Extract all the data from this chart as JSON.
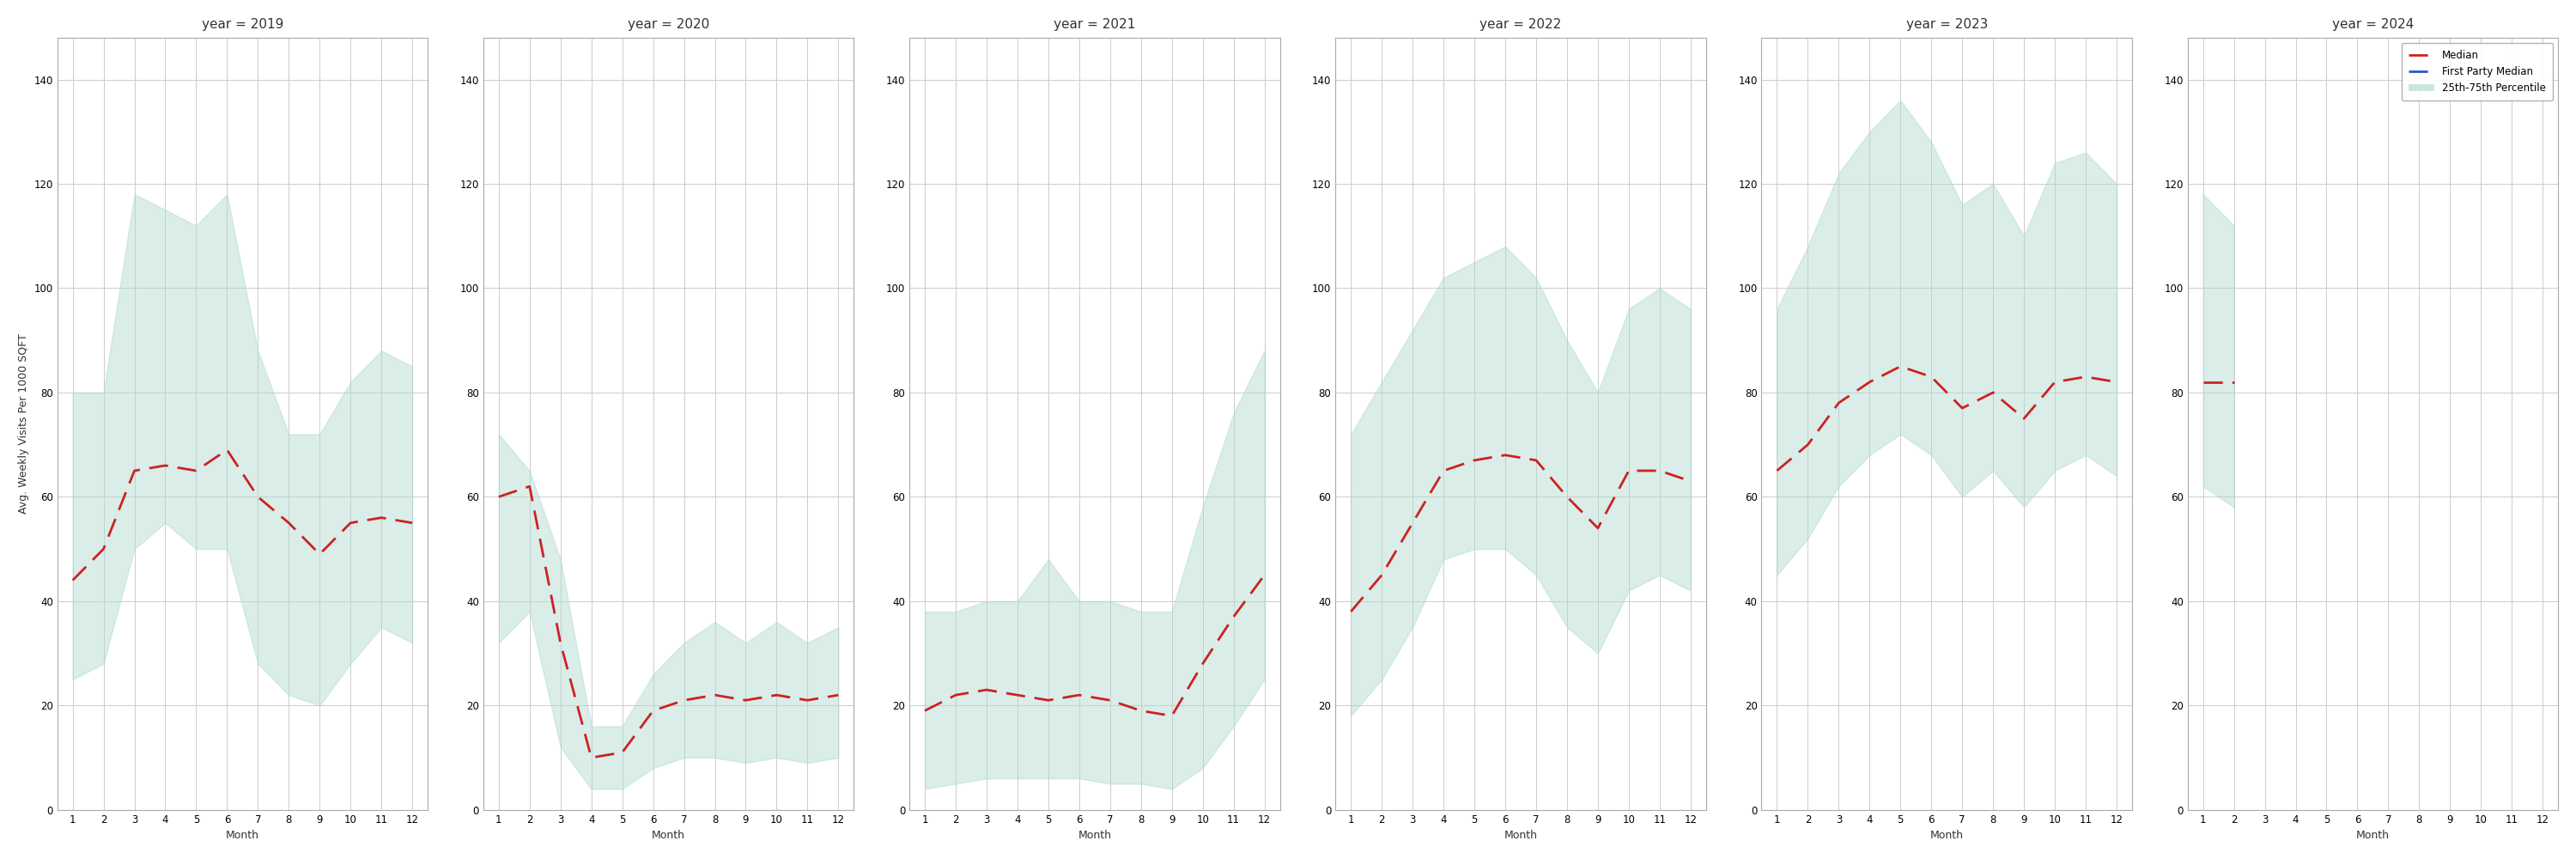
{
  "years": [
    2019,
    2020,
    2021,
    2022,
    2023,
    2024
  ],
  "months": [
    1,
    2,
    3,
    4,
    5,
    6,
    7,
    8,
    9,
    10,
    11,
    12
  ],
  "median": {
    "2019": [
      44,
      50,
      65,
      66,
      65,
      69,
      60,
      55,
      49,
      55,
      56,
      55
    ],
    "2020": [
      60,
      62,
      32,
      10,
      11,
      19,
      21,
      22,
      21,
      22,
      21,
      22
    ],
    "2021": [
      19,
      22,
      23,
      22,
      21,
      22,
      21,
      19,
      18,
      28,
      37,
      45
    ],
    "2022": [
      38,
      45,
      55,
      65,
      67,
      68,
      67,
      60,
      54,
      65,
      65,
      63
    ],
    "2023": [
      65,
      70,
      78,
      82,
      85,
      83,
      77,
      80,
      75,
      82,
      83,
      82
    ],
    "2024": [
      82,
      82,
      null,
      null,
      null,
      null,
      null,
      null,
      null,
      null,
      null,
      null
    ]
  },
  "p25": {
    "2019": [
      25,
      28,
      50,
      55,
      50,
      50,
      28,
      22,
      20,
      28,
      35,
      32
    ],
    "2020": [
      32,
      38,
      12,
      4,
      4,
      8,
      10,
      10,
      9,
      10,
      9,
      10
    ],
    "2021": [
      4,
      5,
      6,
      6,
      6,
      6,
      5,
      5,
      4,
      8,
      16,
      25
    ],
    "2022": [
      18,
      25,
      35,
      48,
      50,
      50,
      45,
      35,
      30,
      42,
      45,
      42
    ],
    "2023": [
      45,
      52,
      62,
      68,
      72,
      68,
      60,
      65,
      58,
      65,
      68,
      64
    ],
    "2024": [
      62,
      58,
      null,
      null,
      null,
      null,
      null,
      null,
      null,
      null,
      null,
      null
    ]
  },
  "p75": {
    "2019": [
      80,
      80,
      118,
      115,
      112,
      118,
      88,
      72,
      72,
      82,
      88,
      85
    ],
    "2020": [
      72,
      65,
      48,
      16,
      16,
      26,
      32,
      36,
      32,
      36,
      32,
      35
    ],
    "2021": [
      38,
      38,
      40,
      40,
      48,
      40,
      40,
      38,
      38,
      58,
      76,
      88
    ],
    "2022": [
      72,
      82,
      92,
      102,
      105,
      108,
      102,
      90,
      80,
      96,
      100,
      96
    ],
    "2023": [
      96,
      108,
      122,
      130,
      136,
      128,
      116,
      120,
      110,
      124,
      126,
      120
    ],
    "2024": [
      118,
      112,
      null,
      null,
      null,
      null,
      null,
      null,
      null,
      null,
      null,
      null
    ]
  },
  "ylim": [
    0,
    148
  ],
  "yticks": [
    0,
    20,
    40,
    60,
    80,
    100,
    120,
    140
  ],
  "fill_color": "#aed9d0",
  "fill_alpha": 0.45,
  "line_color": "#cc2222",
  "fp_line_color": "#3355cc",
  "background_color": "#ffffff",
  "grid_color": "#cccccc",
  "title_fontsize": 11,
  "axis_label_fontsize": 9,
  "tick_fontsize": 8.5
}
